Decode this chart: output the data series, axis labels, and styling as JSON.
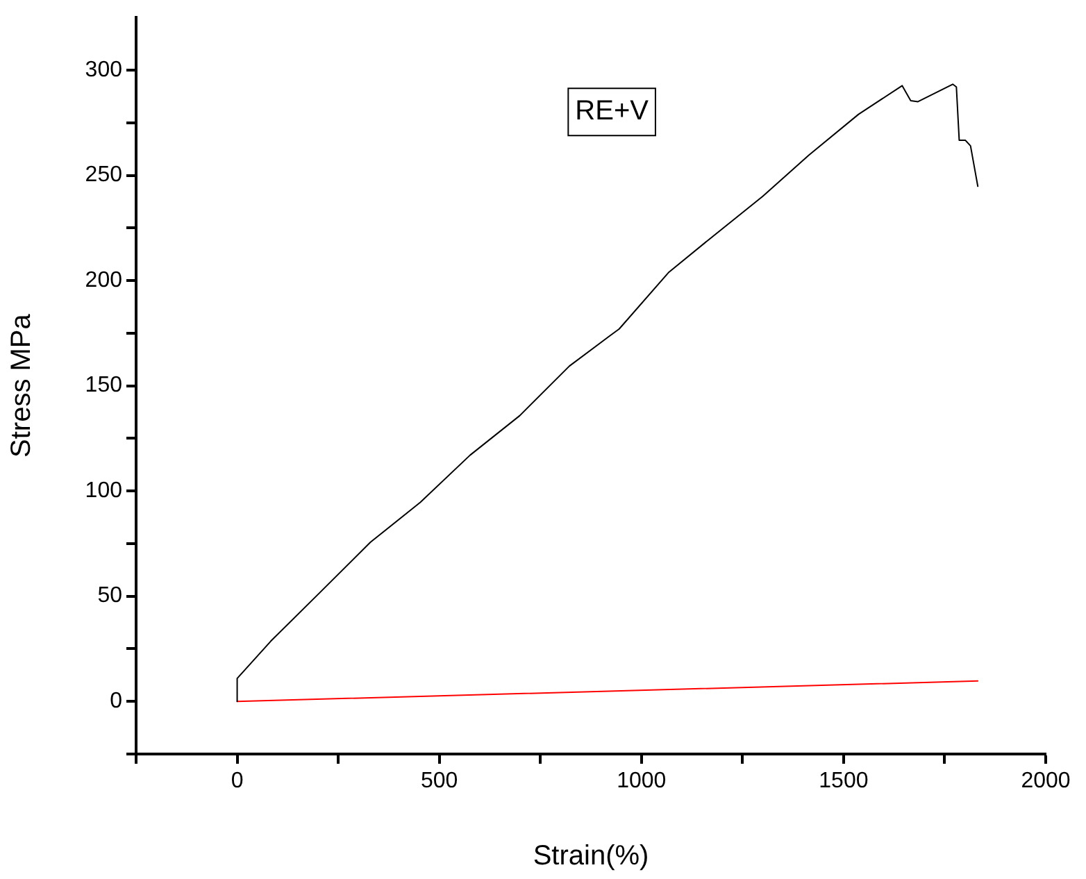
{
  "chart_data": {
    "type": "line",
    "xlabel": "Strain(%)",
    "ylabel": "Stress MPa",
    "annotations": [
      "RE+V"
    ],
    "xlim": [
      -250,
      2000
    ],
    "ylim": [
      -25,
      325
    ],
    "xticks": [
      {
        "value": -250,
        "label": null
      },
      0,
      {
        "value": 250,
        "label": null
      },
      500,
      {
        "value": 750,
        "label": null
      },
      1000,
      {
        "value": 1250,
        "label": null
      },
      1500,
      {
        "value": 1750,
        "label": null
      },
      2000
    ],
    "yticks": [
      {
        "value": -25,
        "label": null
      },
      0,
      {
        "value": 25,
        "label": null
      },
      50,
      {
        "value": 75,
        "label": null
      },
      100,
      {
        "value": 125,
        "label": null
      },
      150,
      {
        "value": 175,
        "label": null
      },
      200,
      {
        "value": 225,
        "label": null
      },
      250,
      {
        "value": 275,
        "label": null
      },
      300
    ],
    "grid": false,
    "legend": false,
    "marker": "none",
    "line_style": "solid",
    "series": [
      {
        "color": "#000000",
        "x": [
          0,
          0,
          83,
          206,
          330,
          453,
          576,
          699,
          822,
          921,
          945,
          1068,
          1167,
          1300,
          1414,
          1537,
          1645,
          1666,
          1684,
          1770,
          1779,
          1786,
          1801,
          1814,
          1832
        ],
        "values": [
          0,
          10.9,
          28.6,
          52,
          75.7,
          94.6,
          117,
          135.8,
          159.4,
          173.6,
          177,
          204,
          219.5,
          240,
          259.6,
          279,
          292.6,
          285.5,
          285,
          293.3,
          292,
          266.7,
          266.7,
          264,
          244.8
        ]
      },
      {
        "color": "#ff0000",
        "x": [
          0,
          1832
        ],
        "values": [
          0,
          9.7
        ]
      }
    ]
  }
}
